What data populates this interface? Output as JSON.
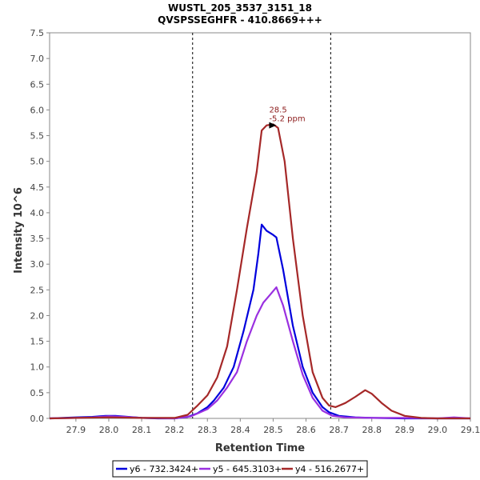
{
  "chart_data": {
    "type": "line",
    "title": "WUSTL_205_3537_3151_18",
    "subtitle": "QVSPSSEGHFR - 410.8669+++",
    "xlabel": "Retention Time",
    "ylabel": "Intensity 10^6",
    "xlim": [
      27.82,
      29.1
    ],
    "ylim": [
      0,
      7.5
    ],
    "xticks": [
      "27.9",
      "28.0",
      "28.1",
      "28.2",
      "28.3",
      "28.4",
      "28.5",
      "28.6",
      "28.7",
      "28.8",
      "28.9",
      "29.0",
      "29.1"
    ],
    "yticks": [
      "0.0",
      "0.5",
      "1.0",
      "1.5",
      "2.0",
      "2.5",
      "3.0",
      "3.5",
      "4.0",
      "4.5",
      "5.0",
      "5.5",
      "6.0",
      "6.5",
      "7.0",
      "7.5"
    ],
    "integration_bounds": [
      28.255,
      28.675
    ],
    "annotation": {
      "x": 28.5,
      "y": 5.7,
      "line1": "28.5",
      "line2": "-5.2 ppm",
      "color": "#8b1a1a"
    },
    "legend_position": "bottom",
    "series": [
      {
        "name": "y6 - 732.3424+",
        "color": "#0000dd",
        "points": [
          [
            27.82,
            0
          ],
          [
            27.9,
            0.02
          ],
          [
            27.95,
            0.03
          ],
          [
            27.99,
            0.05
          ],
          [
            28.02,
            0.05
          ],
          [
            28.06,
            0.03
          ],
          [
            28.1,
            0.01
          ],
          [
            28.15,
            0.0
          ],
          [
            28.2,
            0.0
          ],
          [
            28.24,
            0.03
          ],
          [
            28.27,
            0.1
          ],
          [
            28.3,
            0.22
          ],
          [
            28.32,
            0.35
          ],
          [
            28.35,
            0.6
          ],
          [
            28.38,
            1.0
          ],
          [
            28.41,
            1.7
          ],
          [
            28.44,
            2.5
          ],
          [
            28.455,
            3.2
          ],
          [
            28.465,
            3.77
          ],
          [
            28.48,
            3.65
          ],
          [
            28.5,
            3.57
          ],
          [
            28.51,
            3.52
          ],
          [
            28.53,
            2.9
          ],
          [
            28.56,
            1.8
          ],
          [
            28.59,
            1.0
          ],
          [
            28.62,
            0.5
          ],
          [
            28.65,
            0.22
          ],
          [
            28.67,
            0.12
          ],
          [
            28.7,
            0.05
          ],
          [
            28.75,
            0.02
          ],
          [
            28.8,
            0.01
          ],
          [
            28.9,
            0.0
          ],
          [
            29.0,
            0.0
          ],
          [
            29.1,
            0.0
          ]
        ]
      },
      {
        "name": "y5 - 645.3103+",
        "color": "#9a30e0",
        "points": [
          [
            27.82,
            0
          ],
          [
            27.9,
            0.01
          ],
          [
            27.95,
            0.02
          ],
          [
            28.0,
            0.04
          ],
          [
            28.05,
            0.03
          ],
          [
            28.1,
            0.01
          ],
          [
            28.2,
            0.0
          ],
          [
            28.25,
            0.04
          ],
          [
            28.3,
            0.18
          ],
          [
            28.33,
            0.35
          ],
          [
            28.36,
            0.6
          ],
          [
            28.39,
            0.9
          ],
          [
            28.42,
            1.5
          ],
          [
            28.45,
            2.0
          ],
          [
            28.47,
            2.25
          ],
          [
            28.49,
            2.4
          ],
          [
            28.51,
            2.55
          ],
          [
            28.53,
            2.2
          ],
          [
            28.56,
            1.5
          ],
          [
            28.59,
            0.85
          ],
          [
            28.62,
            0.4
          ],
          [
            28.65,
            0.15
          ],
          [
            28.68,
            0.05
          ],
          [
            28.72,
            0.02
          ],
          [
            28.8,
            0.01
          ],
          [
            28.9,
            0.01
          ],
          [
            29.0,
            0.0
          ],
          [
            29.05,
            0.02
          ],
          [
            29.1,
            0.0
          ]
        ]
      },
      {
        "name": "y4 - 516.2677+",
        "color": "#a52828",
        "points": [
          [
            27.82,
            0
          ],
          [
            27.9,
            0.01
          ],
          [
            28.0,
            0.02
          ],
          [
            28.1,
            0.01
          ],
          [
            28.2,
            0.01
          ],
          [
            28.24,
            0.07
          ],
          [
            28.27,
            0.25
          ],
          [
            28.3,
            0.45
          ],
          [
            28.33,
            0.8
          ],
          [
            28.36,
            1.4
          ],
          [
            28.39,
            2.5
          ],
          [
            28.42,
            3.7
          ],
          [
            28.45,
            4.8
          ],
          [
            28.465,
            5.6
          ],
          [
            28.48,
            5.7
          ],
          [
            28.5,
            5.72
          ],
          [
            28.515,
            5.65
          ],
          [
            28.535,
            5.0
          ],
          [
            28.56,
            3.5
          ],
          [
            28.59,
            2.0
          ],
          [
            28.62,
            0.9
          ],
          [
            28.65,
            0.4
          ],
          [
            28.67,
            0.25
          ],
          [
            28.69,
            0.22
          ],
          [
            28.72,
            0.3
          ],
          [
            28.75,
            0.42
          ],
          [
            28.78,
            0.55
          ],
          [
            28.8,
            0.48
          ],
          [
            28.83,
            0.3
          ],
          [
            28.86,
            0.15
          ],
          [
            28.9,
            0.05
          ],
          [
            28.95,
            0.01
          ],
          [
            29.0,
            0.0
          ],
          [
            29.1,
            0.0
          ]
        ]
      }
    ]
  }
}
